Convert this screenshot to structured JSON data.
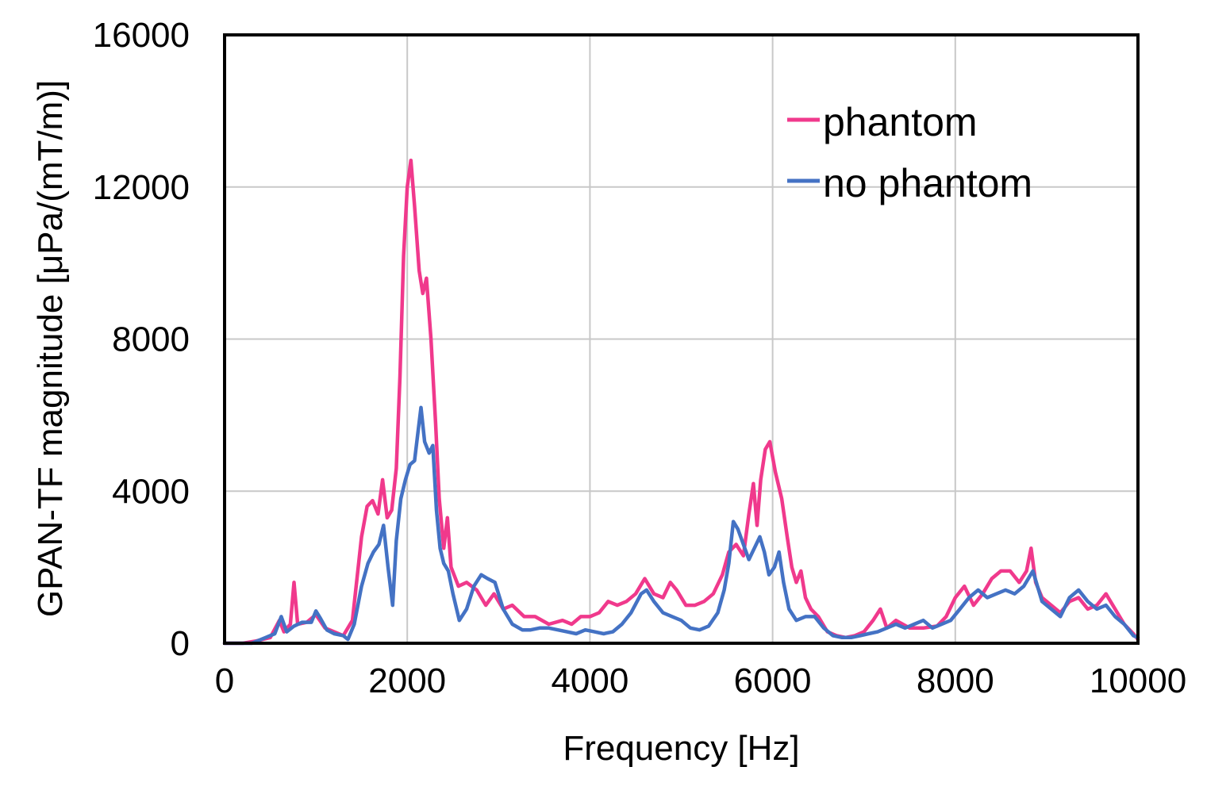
{
  "chart_data": {
    "type": "line",
    "xlabel": "Frequency [Hz]",
    "ylabel": "GPAN-TF magnitude [μPa/(mT/m)]",
    "xlim": [
      0,
      10000
    ],
    "ylim": [
      0,
      16000
    ],
    "x_ticks": [
      "0",
      "2000",
      "4000",
      "6000",
      "8000",
      "10000"
    ],
    "y_ticks": [
      "0",
      "4000",
      "8000",
      "12000",
      "16000"
    ],
    "grid": true,
    "legend_position": "top-right",
    "series": [
      {
        "name": "phantom",
        "color": "#F0398C",
        "points": [
          [
            0,
            0
          ],
          [
            200,
            0
          ],
          [
            350,
            60
          ],
          [
            500,
            150
          ],
          [
            600,
            600
          ],
          [
            650,
            300
          ],
          [
            720,
            500
          ],
          [
            760,
            1600
          ],
          [
            800,
            500
          ],
          [
            900,
            550
          ],
          [
            1000,
            750
          ],
          [
            1100,
            400
          ],
          [
            1200,
            300
          ],
          [
            1300,
            200
          ],
          [
            1400,
            600
          ],
          [
            1500,
            2800
          ],
          [
            1560,
            3600
          ],
          [
            1620,
            3750
          ],
          [
            1680,
            3400
          ],
          [
            1730,
            4300
          ],
          [
            1780,
            3300
          ],
          [
            1830,
            3500
          ],
          [
            1880,
            4600
          ],
          [
            1920,
            7000
          ],
          [
            1960,
            10200
          ],
          [
            2000,
            12000
          ],
          [
            2040,
            12700
          ],
          [
            2080,
            11500
          ],
          [
            2130,
            9800
          ],
          [
            2170,
            9200
          ],
          [
            2210,
            9600
          ],
          [
            2260,
            8000
          ],
          [
            2310,
            5800
          ],
          [
            2350,
            3800
          ],
          [
            2400,
            2500
          ],
          [
            2440,
            3300
          ],
          [
            2480,
            2000
          ],
          [
            2560,
            1500
          ],
          [
            2650,
            1600
          ],
          [
            2760,
            1400
          ],
          [
            2860,
            1000
          ],
          [
            2950,
            1300
          ],
          [
            3050,
            900
          ],
          [
            3150,
            1000
          ],
          [
            3280,
            700
          ],
          [
            3400,
            700
          ],
          [
            3550,
            500
          ],
          [
            3700,
            600
          ],
          [
            3800,
            500
          ],
          [
            3900,
            700
          ],
          [
            4000,
            700
          ],
          [
            4100,
            800
          ],
          [
            4200,
            1100
          ],
          [
            4300,
            1000
          ],
          [
            4400,
            1100
          ],
          [
            4500,
            1300
          ],
          [
            4600,
            1700
          ],
          [
            4700,
            1300
          ],
          [
            4800,
            1200
          ],
          [
            4880,
            1600
          ],
          [
            4950,
            1400
          ],
          [
            5050,
            1000
          ],
          [
            5150,
            1000
          ],
          [
            5250,
            1100
          ],
          [
            5350,
            1300
          ],
          [
            5450,
            1800
          ],
          [
            5520,
            2400
          ],
          [
            5600,
            2600
          ],
          [
            5680,
            2300
          ],
          [
            5740,
            3400
          ],
          [
            5790,
            4200
          ],
          [
            5830,
            3100
          ],
          [
            5870,
            4300
          ],
          [
            5920,
            5100
          ],
          [
            5970,
            5300
          ],
          [
            6030,
            4500
          ],
          [
            6100,
            3800
          ],
          [
            6160,
            2800
          ],
          [
            6210,
            2000
          ],
          [
            6260,
            1600
          ],
          [
            6310,
            1900
          ],
          [
            6360,
            1200
          ],
          [
            6420,
            900
          ],
          [
            6500,
            700
          ],
          [
            6600,
            300
          ],
          [
            6700,
            200
          ],
          [
            6800,
            150
          ],
          [
            6900,
            200
          ],
          [
            7000,
            300
          ],
          [
            7100,
            600
          ],
          [
            7180,
            900
          ],
          [
            7250,
            400
          ],
          [
            7350,
            600
          ],
          [
            7500,
            400
          ],
          [
            7650,
            400
          ],
          [
            7800,
            450
          ],
          [
            7900,
            700
          ],
          [
            8000,
            1200
          ],
          [
            8100,
            1500
          ],
          [
            8200,
            1000
          ],
          [
            8300,
            1300
          ],
          [
            8400,
            1700
          ],
          [
            8500,
            1900
          ],
          [
            8600,
            1900
          ],
          [
            8700,
            1600
          ],
          [
            8780,
            1900
          ],
          [
            8830,
            2500
          ],
          [
            8880,
            1600
          ],
          [
            8950,
            1200
          ],
          [
            9050,
            1000
          ],
          [
            9150,
            800
          ],
          [
            9250,
            1100
          ],
          [
            9350,
            1200
          ],
          [
            9450,
            900
          ],
          [
            9550,
            1000
          ],
          [
            9650,
            1300
          ],
          [
            9750,
            900
          ],
          [
            9850,
            500
          ],
          [
            9950,
            250
          ],
          [
            10000,
            100
          ]
        ]
      },
      {
        "name": "no phantom",
        "color": "#4472C4",
        "points": [
          [
            0,
            0
          ],
          [
            300,
            0
          ],
          [
            450,
            150
          ],
          [
            550,
            250
          ],
          [
            620,
            700
          ],
          [
            680,
            300
          ],
          [
            760,
            450
          ],
          [
            850,
            550
          ],
          [
            950,
            550
          ],
          [
            1000,
            850
          ],
          [
            1050,
            650
          ],
          [
            1120,
            350
          ],
          [
            1200,
            250
          ],
          [
            1300,
            200
          ],
          [
            1350,
            100
          ],
          [
            1420,
            500
          ],
          [
            1500,
            1500
          ],
          [
            1570,
            2100
          ],
          [
            1630,
            2400
          ],
          [
            1690,
            2600
          ],
          [
            1740,
            3100
          ],
          [
            1790,
            2000
          ],
          [
            1840,
            1000
          ],
          [
            1880,
            2700
          ],
          [
            1930,
            3800
          ],
          [
            1980,
            4300
          ],
          [
            2030,
            4700
          ],
          [
            2080,
            4800
          ],
          [
            2120,
            5600
          ],
          [
            2150,
            6200
          ],
          [
            2190,
            5300
          ],
          [
            2240,
            5000
          ],
          [
            2280,
            5200
          ],
          [
            2320,
            3500
          ],
          [
            2360,
            2500
          ],
          [
            2400,
            2100
          ],
          [
            2450,
            1900
          ],
          [
            2500,
            1300
          ],
          [
            2570,
            600
          ],
          [
            2650,
            900
          ],
          [
            2730,
            1500
          ],
          [
            2810,
            1800
          ],
          [
            2880,
            1700
          ],
          [
            2960,
            1600
          ],
          [
            3050,
            900
          ],
          [
            3150,
            500
          ],
          [
            3260,
            350
          ],
          [
            3350,
            350
          ],
          [
            3450,
            400
          ],
          [
            3550,
            400
          ],
          [
            3650,
            350
          ],
          [
            3750,
            300
          ],
          [
            3850,
            250
          ],
          [
            3950,
            350
          ],
          [
            4050,
            300
          ],
          [
            4150,
            250
          ],
          [
            4250,
            300
          ],
          [
            4350,
            500
          ],
          [
            4450,
            800
          ],
          [
            4560,
            1300
          ],
          [
            4620,
            1400
          ],
          [
            4700,
            1100
          ],
          [
            4800,
            800
          ],
          [
            4900,
            700
          ],
          [
            5000,
            600
          ],
          [
            5100,
            400
          ],
          [
            5200,
            350
          ],
          [
            5300,
            450
          ],
          [
            5400,
            800
          ],
          [
            5470,
            1400
          ],
          [
            5520,
            2100
          ],
          [
            5570,
            3200
          ],
          [
            5620,
            3000
          ],
          [
            5680,
            2600
          ],
          [
            5740,
            2200
          ],
          [
            5800,
            2500
          ],
          [
            5860,
            2800
          ],
          [
            5910,
            2400
          ],
          [
            5960,
            1800
          ],
          [
            6020,
            2000
          ],
          [
            6070,
            2400
          ],
          [
            6120,
            1600
          ],
          [
            6180,
            900
          ],
          [
            6260,
            600
          ],
          [
            6360,
            700
          ],
          [
            6460,
            700
          ],
          [
            6560,
            400
          ],
          [
            6660,
            200
          ],
          [
            6760,
            150
          ],
          [
            6860,
            150
          ],
          [
            6960,
            200
          ],
          [
            7050,
            250
          ],
          [
            7150,
            300
          ],
          [
            7250,
            400
          ],
          [
            7350,
            500
          ],
          [
            7450,
            400
          ],
          [
            7550,
            500
          ],
          [
            7650,
            600
          ],
          [
            7750,
            400
          ],
          [
            7850,
            500
          ],
          [
            7950,
            600
          ],
          [
            8050,
            900
          ],
          [
            8150,
            1200
          ],
          [
            8250,
            1400
          ],
          [
            8350,
            1200
          ],
          [
            8450,
            1300
          ],
          [
            8550,
            1400
          ],
          [
            8650,
            1300
          ],
          [
            8750,
            1500
          ],
          [
            8850,
            1900
          ],
          [
            8950,
            1100
          ],
          [
            9050,
            900
          ],
          [
            9150,
            700
          ],
          [
            9250,
            1200
          ],
          [
            9350,
            1400
          ],
          [
            9450,
            1100
          ],
          [
            9550,
            900
          ],
          [
            9650,
            1000
          ],
          [
            9750,
            700
          ],
          [
            9850,
            500
          ],
          [
            9950,
            200
          ],
          [
            10000,
            150
          ]
        ]
      }
    ]
  }
}
